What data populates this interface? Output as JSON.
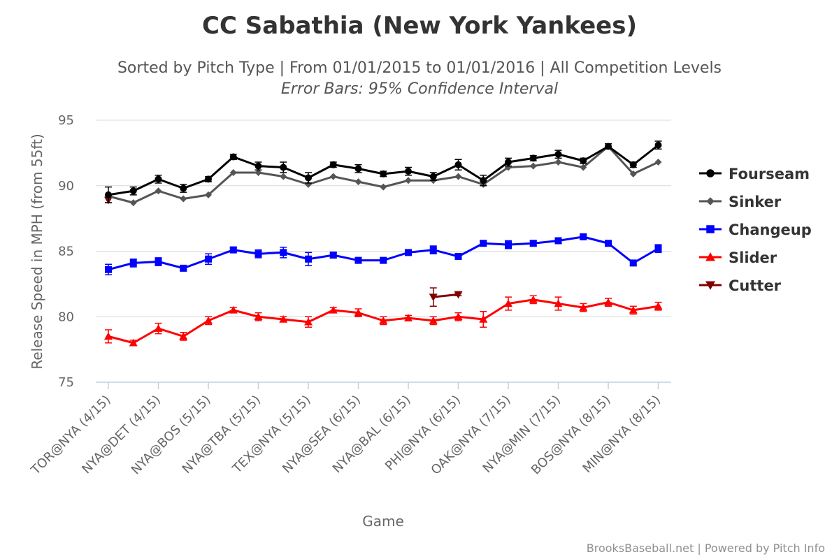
{
  "chart_data": {
    "type": "line",
    "title": "CC Sabathia (New York Yankees)",
    "subtitle": "Sorted by Pitch Type | From 01/01/2015 to 01/01/2016 | All Competition Levels",
    "subtitle2": "Error Bars: 95% Confidence Interval",
    "xlabel": "Game",
    "ylabel": "Release Speed in MPH (from 55ft)",
    "ylim": [
      75,
      95
    ],
    "yticks": [
      75,
      80,
      85,
      90,
      95
    ],
    "grid": true,
    "legend_position": "right",
    "credits": "BrooksBaseball.net | Powered by Pitch Info",
    "x_count": 23,
    "x_tick_labels": [
      {
        "index": 0,
        "label": "TOR@NYA (4/15)"
      },
      {
        "index": 2,
        "label": "NYA@DET (4/15)"
      },
      {
        "index": 4,
        "label": "NYA@BOS (5/15)"
      },
      {
        "index": 6,
        "label": "NYA@TBA (5/15)"
      },
      {
        "index": 8,
        "label": "TEX@NYA (5/15)"
      },
      {
        "index": 10,
        "label": "NYA@SEA (6/15)"
      },
      {
        "index": 12,
        "label": "NYA@BAL (6/15)"
      },
      {
        "index": 14,
        "label": "PHI@NYA (6/15)"
      },
      {
        "index": 16,
        "label": "OAK@NYA (7/15)"
      },
      {
        "index": 18,
        "label": "NYA@MIN (7/15)"
      },
      {
        "index": 20,
        "label": "BOS@NYA (8/15)"
      },
      {
        "index": 22,
        "label": "MIN@NYA (8/15)"
      }
    ],
    "series": [
      {
        "name": "Fourseam",
        "color": "#000000",
        "marker": "circle",
        "values": [
          89.3,
          89.6,
          90.5,
          89.8,
          90.5,
          92.2,
          91.5,
          91.4,
          90.6,
          91.6,
          91.3,
          90.9,
          91.1,
          90.7,
          91.6,
          90.4,
          91.8,
          92.1,
          92.4,
          91.9,
          93.0,
          91.6,
          93.1
        ],
        "err": [
          0.6,
          0.3,
          0.3,
          0.3,
          0.2,
          0.2,
          0.3,
          0.4,
          0.4,
          0.2,
          0.3,
          0.2,
          0.3,
          0.3,
          0.4,
          0.4,
          0.3,
          0.2,
          0.3,
          0.2,
          0.2,
          0.2,
          0.3
        ]
      },
      {
        "name": "Sinker",
        "color": "#555555",
        "marker": "diamond",
        "values": [
          89.2,
          88.7,
          89.6,
          89.0,
          89.3,
          91.0,
          91.0,
          90.7,
          90.1,
          90.7,
          90.3,
          89.9,
          90.4,
          90.4,
          90.7,
          90.1,
          91.4,
          91.5,
          91.8,
          91.4,
          93.0,
          90.9,
          91.8
        ]
      },
      {
        "name": "Changeup",
        "color": "#0000ff",
        "marker": "square",
        "values": [
          83.6,
          84.1,
          84.2,
          83.7,
          84.4,
          85.1,
          84.8,
          84.9,
          84.4,
          84.7,
          84.3,
          84.3,
          84.9,
          85.1,
          84.6,
          85.6,
          85.5,
          85.6,
          85.8,
          86.1,
          85.6,
          84.1,
          85.2
        ],
        "err": [
          0.4,
          0.3,
          0.3,
          0.2,
          0.4,
          0.2,
          0.3,
          0.4,
          0.5,
          0.2,
          0.2,
          0.2,
          0.2,
          0.3,
          0.2,
          0.2,
          0.3,
          0.2,
          0.2,
          0.2,
          0.2,
          0.2,
          0.3
        ]
      },
      {
        "name": "Slider",
        "color": "#ff0000",
        "marker": "triangle",
        "values": [
          78.5,
          78.0,
          79.1,
          78.5,
          79.7,
          80.5,
          80.0,
          79.8,
          79.6,
          80.5,
          80.3,
          79.7,
          79.9,
          79.7,
          80.0,
          79.8,
          81.0,
          81.3,
          81.0,
          80.7,
          81.1,
          80.5,
          80.8
        ],
        "err": [
          0.5,
          0.2,
          0.4,
          0.3,
          0.3,
          0.2,
          0.3,
          0.2,
          0.4,
          0.2,
          0.3,
          0.3,
          0.2,
          0.3,
          0.3,
          0.6,
          0.5,
          0.3,
          0.5,
          0.3,
          0.3,
          0.3,
          0.3
        ]
      },
      {
        "name": "Cutter",
        "color": "#800000",
        "marker": "triangle-down",
        "values": [
          88.9,
          null,
          null,
          null,
          null,
          null,
          null,
          null,
          null,
          null,
          null,
          null,
          null,
          81.5,
          81.7,
          null,
          null,
          null,
          null,
          null,
          null,
          null,
          null
        ],
        "err": [
          0.2,
          null,
          null,
          null,
          null,
          null,
          null,
          null,
          null,
          null,
          null,
          null,
          null,
          0.7,
          0.1,
          null,
          null,
          null,
          null,
          null,
          null,
          null,
          null
        ]
      }
    ]
  }
}
